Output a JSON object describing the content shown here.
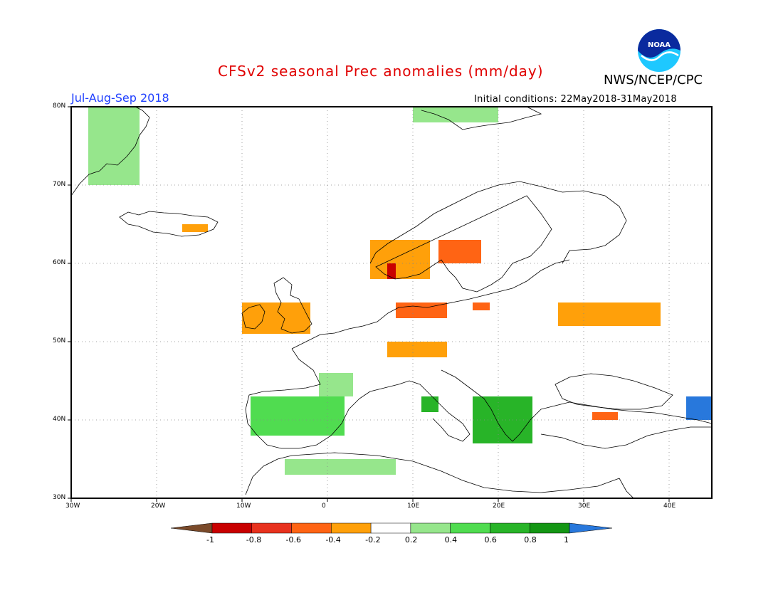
{
  "header": {
    "title": "CFSv2 seasonal Prec anomalies (mm/day)",
    "agency": "NWS/NCEP/CPC",
    "logo_text": "NOAA",
    "period": "Jul-Aug-Sep 2018",
    "initial_conditions": "Initial conditions: 22May2018-31May2018"
  },
  "axes": {
    "lat_labels": [
      "80N",
      "70N",
      "60N",
      "50N",
      "40N",
      "30N"
    ],
    "lat_values": [
      80,
      70,
      60,
      50,
      40,
      30
    ],
    "lon_labels": [
      "30W",
      "20W",
      "10W",
      "0",
      "10E",
      "20E",
      "30E",
      "40E"
    ],
    "lon_values": [
      -30,
      -20,
      -10,
      0,
      10,
      20,
      30,
      40
    ],
    "lon_range": [
      -30,
      45
    ],
    "lat_range": [
      30,
      80
    ],
    "grid": "dotted"
  },
  "colorbar": {
    "labels": [
      "-1",
      "-0.8",
      "-0.6",
      "-0.4",
      "-0.2",
      "0.2",
      "0.4",
      "0.6",
      "0.8",
      "1"
    ],
    "colors": [
      "#7a4a2a",
      "#c80000",
      "#e8321e",
      "#ff6414",
      "#ffa00a",
      "#ffffff",
      "#96e68c",
      "#50dc50",
      "#28b428",
      "#149614",
      "#2878dc"
    ]
  },
  "chart_data": {
    "type": "heatmap",
    "title": "CFSv2 seasonal Prec anomalies (mm/day)",
    "units": "mm/day",
    "period": "Jul-Aug-Sep 2018",
    "region": {
      "lon": [
        -30,
        45
      ],
      "lat": [
        30,
        80
      ]
    },
    "anomaly_patches": [
      {
        "area": "Greenland east coast",
        "lon": [
          -28,
          -22
        ],
        "lat": [
          70,
          80
        ],
        "value": 0.3
      },
      {
        "area": "Svalbard",
        "lon": [
          10,
          20
        ],
        "lat": [
          78,
          80
        ],
        "value": 0.3
      },
      {
        "area": "Iceland east",
        "lon": [
          -17,
          -14
        ],
        "lat": [
          64,
          65
        ],
        "value": -0.3
      },
      {
        "area": "Western Norway",
        "lon": [
          5,
          12
        ],
        "lat": [
          58,
          63
        ],
        "value": -0.3
      },
      {
        "area": "Southwest Norway",
        "lon": [
          7,
          8
        ],
        "lat": [
          58,
          60
        ],
        "value": -0.9
      },
      {
        "area": "Central Sweden",
        "lon": [
          13,
          18
        ],
        "lat": [
          60,
          63
        ],
        "value": -0.5
      },
      {
        "area": "Northern Germany / Denmark",
        "lon": [
          8,
          14
        ],
        "lat": [
          53,
          55
        ],
        "value": -0.5
      },
      {
        "area": "Northern Poland",
        "lon": [
          17,
          19
        ],
        "lat": [
          54,
          55
        ],
        "value": -0.5
      },
      {
        "area": "Ireland / UK",
        "lon": [
          -10,
          -2
        ],
        "lat": [
          51,
          55
        ],
        "value": -0.3
      },
      {
        "area": "Ukraine / Southern Russia",
        "lon": [
          27,
          39
        ],
        "lat": [
          52,
          55
        ],
        "value": -0.3
      },
      {
        "area": "France / Southern Germany",
        "lon": [
          7,
          14
        ],
        "lat": [
          48,
          50
        ],
        "value": -0.3
      },
      {
        "area": "Iberian Peninsula",
        "lon": [
          -9,
          2
        ],
        "lat": [
          38,
          43
        ],
        "value": 0.5
      },
      {
        "area": "Southern France",
        "lon": [
          -1,
          3
        ],
        "lat": [
          43,
          46
        ],
        "value": 0.3
      },
      {
        "area": "Central Italy",
        "lon": [
          11,
          13
        ],
        "lat": [
          41,
          43
        ],
        "value": 0.7
      },
      {
        "area": "Balkans / Greece",
        "lon": [
          17,
          24
        ],
        "lat": [
          37,
          43
        ],
        "value": 0.6
      },
      {
        "area": "Northern Turkey",
        "lon": [
          31,
          34
        ],
        "lat": [
          40,
          41
        ],
        "value": -0.5
      },
      {
        "area": "Caucasus",
        "lon": [
          42,
          45
        ],
        "lat": [
          40,
          43
        ],
        "value": 1.0
      },
      {
        "area": "North Africa coast",
        "lon": [
          -5,
          8
        ],
        "lat": [
          33,
          35
        ],
        "value": 0.3
      }
    ]
  }
}
